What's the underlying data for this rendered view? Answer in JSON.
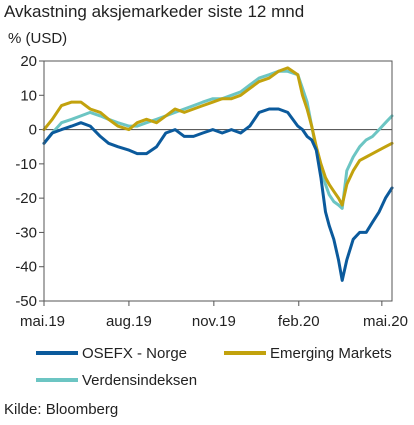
{
  "chart_data": {
    "type": "line",
    "title": "Avkastning aksjemarkeder siste 12 mnd",
    "ylabel": "% (USD)",
    "source": "Kilde: Bloomberg",
    "ylim": [
      -50,
      20
    ],
    "yticks": [
      20,
      10,
      0,
      -10,
      -20,
      -30,
      -40,
      -50
    ],
    "xlim": [
      "2019-05-01",
      "2020-05-12"
    ],
    "xticks": [
      {
        "date": "2019-05-01",
        "label": "mai.19"
      },
      {
        "date": "2019-08-01",
        "label": "aug.19"
      },
      {
        "date": "2019-11-01",
        "label": "nov.19"
      },
      {
        "date": "2020-02-01",
        "label": "feb.20"
      },
      {
        "date": "2020-05-01",
        "label": "mai.20"
      }
    ],
    "grid": false,
    "legend_position": "bottom",
    "series": [
      {
        "name": "OSEFX - Norge",
        "color": "#0b5a9c",
        "points": [
          [
            "2019-05-01",
            -4
          ],
          [
            "2019-05-10",
            -1
          ],
          [
            "2019-05-20",
            0
          ],
          [
            "2019-05-31",
            1
          ],
          [
            "2019-06-10",
            2
          ],
          [
            "2019-06-20",
            1
          ],
          [
            "2019-07-01",
            -2
          ],
          [
            "2019-07-10",
            -4
          ],
          [
            "2019-07-20",
            -5
          ],
          [
            "2019-08-01",
            -6
          ],
          [
            "2019-08-10",
            -7
          ],
          [
            "2019-08-20",
            -7
          ],
          [
            "2019-08-31",
            -5
          ],
          [
            "2019-09-10",
            -1
          ],
          [
            "2019-09-20",
            0
          ],
          [
            "2019-09-30",
            -2
          ],
          [
            "2019-10-10",
            -2
          ],
          [
            "2019-10-20",
            -1
          ],
          [
            "2019-10-31",
            0
          ],
          [
            "2019-11-10",
            -1
          ],
          [
            "2019-11-20",
            0
          ],
          [
            "2019-11-30",
            -1
          ],
          [
            "2019-12-10",
            1
          ],
          [
            "2019-12-20",
            5
          ],
          [
            "2019-12-31",
            6
          ],
          [
            "2020-01-10",
            6
          ],
          [
            "2020-01-20",
            5
          ],
          [
            "2020-01-31",
            1
          ],
          [
            "2020-02-05",
            0
          ],
          [
            "2020-02-10",
            -2
          ],
          [
            "2020-02-15",
            -3
          ],
          [
            "2020-02-20",
            -6
          ],
          [
            "2020-02-25",
            -14
          ],
          [
            "2020-03-01",
            -24
          ],
          [
            "2020-03-05",
            -28
          ],
          [
            "2020-03-10",
            -32
          ],
          [
            "2020-03-15",
            -38
          ],
          [
            "2020-03-19",
            -44
          ],
          [
            "2020-03-24",
            -38
          ],
          [
            "2020-03-31",
            -32
          ],
          [
            "2020-04-07",
            -30
          ],
          [
            "2020-04-14",
            -30
          ],
          [
            "2020-04-21",
            -27
          ],
          [
            "2020-04-28",
            -24
          ],
          [
            "2020-05-05",
            -20
          ],
          [
            "2020-05-12",
            -17
          ]
        ]
      },
      {
        "name": "Emerging Markets",
        "color": "#c2a20d",
        "points": [
          [
            "2019-05-01",
            0
          ],
          [
            "2019-05-10",
            3
          ],
          [
            "2019-05-20",
            7
          ],
          [
            "2019-05-31",
            8
          ],
          [
            "2019-06-10",
            8
          ],
          [
            "2019-06-20",
            6
          ],
          [
            "2019-07-01",
            5
          ],
          [
            "2019-07-10",
            3
          ],
          [
            "2019-07-20",
            1
          ],
          [
            "2019-08-01",
            0
          ],
          [
            "2019-08-10",
            2
          ],
          [
            "2019-08-20",
            3
          ],
          [
            "2019-08-31",
            2
          ],
          [
            "2019-09-10",
            4
          ],
          [
            "2019-09-20",
            6
          ],
          [
            "2019-09-30",
            5
          ],
          [
            "2019-10-10",
            6
          ],
          [
            "2019-10-20",
            7
          ],
          [
            "2019-10-31",
            8
          ],
          [
            "2019-11-10",
            9
          ],
          [
            "2019-11-20",
            9
          ],
          [
            "2019-11-30",
            10
          ],
          [
            "2019-12-10",
            12
          ],
          [
            "2019-12-20",
            14
          ],
          [
            "2019-12-31",
            15
          ],
          [
            "2020-01-10",
            17
          ],
          [
            "2020-01-20",
            18
          ],
          [
            "2020-01-31",
            16
          ],
          [
            "2020-02-05",
            10
          ],
          [
            "2020-02-10",
            6
          ],
          [
            "2020-02-15",
            1
          ],
          [
            "2020-02-20",
            -5
          ],
          [
            "2020-02-25",
            -10
          ],
          [
            "2020-03-01",
            -14
          ],
          [
            "2020-03-05",
            -16
          ],
          [
            "2020-03-10",
            -18
          ],
          [
            "2020-03-15",
            -20
          ],
          [
            "2020-03-19",
            -22
          ],
          [
            "2020-03-24",
            -16
          ],
          [
            "2020-03-31",
            -12
          ],
          [
            "2020-04-07",
            -9
          ],
          [
            "2020-04-14",
            -8
          ],
          [
            "2020-04-21",
            -7
          ],
          [
            "2020-04-28",
            -6
          ],
          [
            "2020-05-05",
            -5
          ],
          [
            "2020-05-12",
            -4
          ]
        ]
      },
      {
        "name": "Verdensindeksen",
        "color": "#6cc5c3",
        "points": [
          [
            "2019-05-01",
            -4
          ],
          [
            "2019-05-10",
            -1
          ],
          [
            "2019-05-20",
            2
          ],
          [
            "2019-05-31",
            3
          ],
          [
            "2019-06-10",
            4
          ],
          [
            "2019-06-20",
            5
          ],
          [
            "2019-07-01",
            4
          ],
          [
            "2019-07-10",
            3
          ],
          [
            "2019-07-20",
            2
          ],
          [
            "2019-08-01",
            1
          ],
          [
            "2019-08-10",
            1
          ],
          [
            "2019-08-20",
            2
          ],
          [
            "2019-08-31",
            3
          ],
          [
            "2019-09-10",
            4
          ],
          [
            "2019-09-20",
            5
          ],
          [
            "2019-09-30",
            6
          ],
          [
            "2019-10-10",
            7
          ],
          [
            "2019-10-20",
            8
          ],
          [
            "2019-10-31",
            9
          ],
          [
            "2019-11-10",
            9
          ],
          [
            "2019-11-20",
            10
          ],
          [
            "2019-11-30",
            11
          ],
          [
            "2019-12-10",
            13
          ],
          [
            "2019-12-20",
            15
          ],
          [
            "2019-12-31",
            16
          ],
          [
            "2020-01-10",
            17
          ],
          [
            "2020-01-20",
            17
          ],
          [
            "2020-01-31",
            16
          ],
          [
            "2020-02-05",
            12
          ],
          [
            "2020-02-10",
            8
          ],
          [
            "2020-02-15",
            1
          ],
          [
            "2020-02-20",
            -6
          ],
          [
            "2020-02-25",
            -12
          ],
          [
            "2020-03-01",
            -16
          ],
          [
            "2020-03-05",
            -19
          ],
          [
            "2020-03-10",
            -21
          ],
          [
            "2020-03-15",
            -22
          ],
          [
            "2020-03-19",
            -23
          ],
          [
            "2020-03-24",
            -12
          ],
          [
            "2020-03-31",
            -8
          ],
          [
            "2020-04-07",
            -5
          ],
          [
            "2020-04-14",
            -3
          ],
          [
            "2020-04-21",
            -2
          ],
          [
            "2020-04-28",
            0
          ],
          [
            "2020-05-05",
            2
          ],
          [
            "2020-05-12",
            4
          ]
        ]
      }
    ]
  }
}
